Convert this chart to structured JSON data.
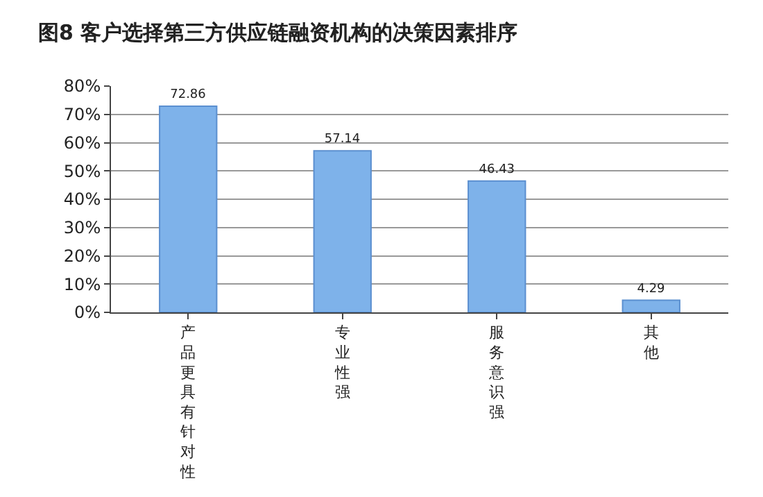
{
  "chart_data": {
    "type": "bar",
    "title": "图8 客户选择第三方供应链融资机构的决策因素排序",
    "categories": [
      "产品更具有针对性",
      "专业性强",
      "服务意识强",
      "其他"
    ],
    "values": [
      72.86,
      57.14,
      46.43,
      4.29
    ],
    "color": "#7eb2ea",
    "ylim": [
      0,
      80
    ],
    "yticks": [
      {
        "value": 0,
        "label": "0%"
      },
      {
        "value": 10,
        "label": "10%"
      },
      {
        "value": 20,
        "label": "20%"
      },
      {
        "value": 30,
        "label": "30%"
      },
      {
        "value": 40,
        "label": "40%"
      },
      {
        "value": 50,
        "label": "50%"
      },
      {
        "value": 60,
        "label": "60%"
      },
      {
        "value": 70,
        "label": "70%"
      },
      {
        "value": 80,
        "label": "80%"
      }
    ],
    "grid": "y",
    "data_labels": true
  }
}
